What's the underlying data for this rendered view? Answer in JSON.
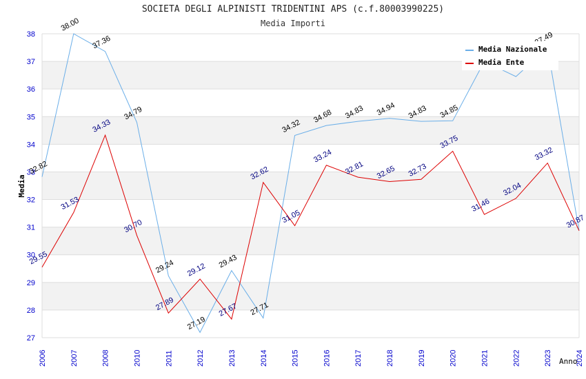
{
  "chart_data": {
    "type": "line",
    "title": "SOCIETA DEGLI ALPINISTI TRIDENTINI APS (c.f.80003990225)",
    "subtitle": "Media Importi",
    "xlabel": "Anno",
    "ylabel": "Media",
    "ylim": [
      27,
      38
    ],
    "yticks": [
      "27",
      "28",
      "29",
      "30",
      "31",
      "32",
      "33",
      "34",
      "35",
      "36",
      "37",
      "38"
    ],
    "categories": [
      "2006",
      "2007",
      "2008",
      "2010",
      "2011",
      "2012",
      "2013",
      "2014",
      "2015",
      "2016",
      "2017",
      "2018",
      "2019",
      "2020",
      "2021",
      "2022",
      "2023",
      "2024"
    ],
    "series": [
      {
        "name": "Media Nazionale",
        "color": "#6aaee8",
        "values": [
          32.82,
          38.0,
          37.36,
          34.79,
          29.24,
          27.19,
          29.43,
          27.71,
          34.32,
          34.68,
          34.83,
          34.94,
          34.83,
          34.85,
          37.0,
          36.45,
          37.49,
          30.87
        ],
        "labels": [
          "32.82",
          "38.00",
          "37.36",
          "34.79",
          "29.24",
          "27.19",
          "29.43",
          "27.71",
          "34.32",
          "34.68",
          "34.83",
          "34.94",
          "34.83",
          "34.85",
          "",
          "",
          "37.49",
          ""
        ]
      },
      {
        "name": "Media Ente",
        "color": "#dd0000",
        "values": [
          29.55,
          31.53,
          34.33,
          30.7,
          27.89,
          29.12,
          27.67,
          32.62,
          31.05,
          33.24,
          32.81,
          32.65,
          32.73,
          33.75,
          31.46,
          32.04,
          33.32,
          30.87
        ],
        "labels": [
          "29.55",
          "31.53",
          "34.33",
          "30.70",
          "27.89",
          "29.12",
          "27.67",
          "32.62",
          "31.05",
          "33.24",
          "32.81",
          "32.65",
          "32.73",
          "33.75",
          "31.46",
          "32.04",
          "33.32",
          "30.87"
        ]
      }
    ],
    "legend": "top-right",
    "grid": true
  }
}
